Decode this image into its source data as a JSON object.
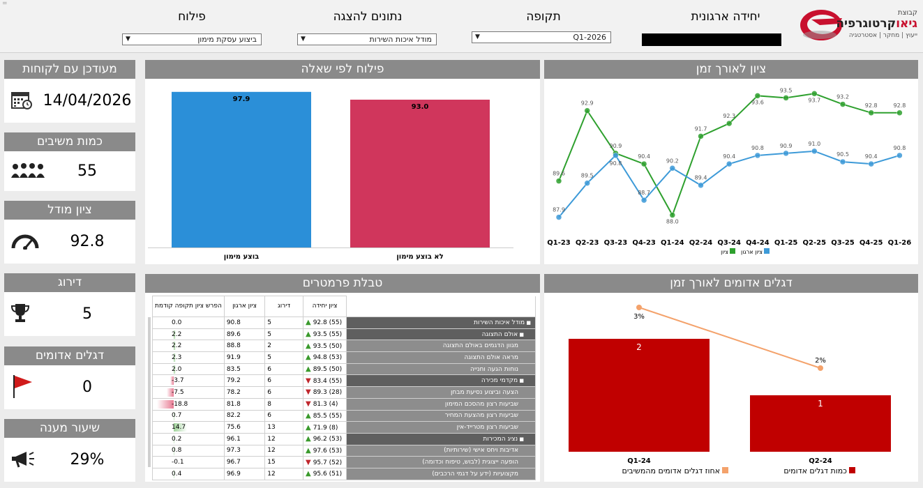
{
  "top_bar": {
    "corner_mark": "=",
    "filters": [
      {
        "title": "יחידה ארגונית",
        "value": ""
      },
      {
        "title": "תקופה",
        "value": "Q1-2026"
      },
      {
        "title": "נתונים להצגה",
        "value": "מודל איכות השירות"
      },
      {
        "title": "פילוח",
        "value": "ביצוע עסקת מימון"
      }
    ]
  },
  "logo": {
    "top_text": "קבוצת",
    "name_red": "גיאו",
    "name_rest": "קרטוגרפיה",
    "tagline": "ייעוץ | מחקר | אסטרטגיה"
  },
  "kpis": [
    {
      "title": "מעודכן עם לקוחות",
      "value": "14/04/2026",
      "icon": "calendar-icon"
    },
    {
      "title": "כמות משיבים",
      "value": "55",
      "icon": "people-icon"
    },
    {
      "title": "ציון מודל",
      "value": "92.8",
      "icon": "speedometer-icon"
    },
    {
      "title": "דירוג",
      "value": "5",
      "icon": "trophy-icon"
    },
    {
      "title": "דגלים אדומים",
      "value": "0",
      "icon": "red-flag-icon"
    },
    {
      "title": "שיעור מענה",
      "value": "29%",
      "icon": "megaphone-icon"
    }
  ],
  "panels": {
    "bar_by_question": "פילוח לפי שאלה",
    "score_over_time": "ציון לאורך זמן",
    "params_table": "טבלת פרמטרים",
    "red_flags_over_time": "דגלים אדומים לאורך זמן"
  },
  "chart_data": [
    {
      "type": "bar",
      "categories": [
        "בוצע מימון",
        "לא בוצע מימון"
      ],
      "values": [
        97.9,
        93.0
      ],
      "colors": [
        "#2b8fd8",
        "#d0365c"
      ],
      "title": "פילוח לפי שאלה",
      "ylim": [
        0,
        100
      ]
    },
    {
      "type": "line",
      "title": "ציון לאורך זמן",
      "categories": [
        "Q1-23",
        "Q2-23",
        "Q3-23",
        "Q4-23",
        "Q1-24",
        "Q2-24",
        "Q3-24",
        "Q4-24",
        "Q1-25",
        "Q2-25",
        "Q3-25",
        "Q4-25",
        "Q1-26"
      ],
      "series": [
        {
          "name": "ציון",
          "color": "#2ea02e",
          "values": [
            89.6,
            92.9,
            90.9,
            90.4,
            88.0,
            91.7,
            92.3,
            93.6,
            93.5,
            93.7,
            93.2,
            92.8,
            92.8
          ]
        },
        {
          "name": "ציון ארגון",
          "color": "#3d9ad8",
          "values": [
            87.9,
            89.5,
            90.8,
            88.7,
            90.2,
            89.4,
            90.4,
            90.8,
            90.9,
            91.0,
            90.5,
            90.4,
            90.8
          ]
        }
      ],
      "ylim": [
        87.2,
        94.2
      ],
      "legend": "bottom"
    },
    {
      "type": "bar",
      "title": "דגלים אדומים לאורך זמן",
      "categories": [
        "Q1-24",
        "Q2-24"
      ],
      "series": [
        {
          "name": "כמות דגלים אדומים",
          "color": "#c00000",
          "values": [
            2,
            1
          ]
        },
        {
          "name": "אחוז דגלים אדומים מהמשיבים",
          "color": "#f4a26b",
          "values": [
            "3%",
            "2%"
          ],
          "numeric": [
            3,
            2
          ]
        }
      ],
      "ylim": [
        0,
        3.2
      ],
      "legend": "bottom"
    }
  ],
  "params_table": {
    "headers": [
      "ציון יחידה",
      "דירוג",
      "ציון ארגון",
      "הפרש ציון תקופה קודמת"
    ],
    "rows": [
      {
        "name": "מודל איכות השירות",
        "group": true,
        "level": 0,
        "unit_score": "92.8 (55)",
        "trend": "up",
        "rank": "5",
        "org": "90.8",
        "diff": "0.0",
        "diff_val": 0.0
      },
      {
        "name": "אולם התצוגה",
        "group": true,
        "level": 1,
        "unit_score": "93.5 (55)",
        "trend": "up",
        "rank": "5",
        "org": "89.6",
        "diff": "2.2",
        "diff_val": 2.2
      },
      {
        "name": "מגוון הדגמים באולם התצוגה",
        "group": false,
        "level": 2,
        "unit_score": "93.5 (50)",
        "trend": "up",
        "rank": "2",
        "org": "88.8",
        "diff": "2.2",
        "diff_val": 2.2
      },
      {
        "name": "מראה אולם התצוגה",
        "group": false,
        "level": 2,
        "unit_score": "94.8 (53)",
        "trend": "up",
        "rank": "5",
        "org": "91.9",
        "diff": "2.3",
        "diff_val": 2.3
      },
      {
        "name": "נוחות הגעה וחנייה",
        "group": false,
        "level": 2,
        "unit_score": "89.5 (50)",
        "trend": "up",
        "rank": "6",
        "org": "83.5",
        "diff": "2.0",
        "diff_val": 2.0
      },
      {
        "name": "מקדמי מכירה",
        "group": true,
        "level": 1,
        "unit_score": "83.4 (55)",
        "trend": "down",
        "rank": "6",
        "org": "79.2",
        "diff": "-3.7",
        "diff_val": -3.7
      },
      {
        "name": "הצעה וביצוע נסיעת מבחן",
        "group": false,
        "level": 2,
        "unit_score": "89.3 (28)",
        "trend": "down",
        "rank": "6",
        "org": "78.2",
        "diff": "-7.5",
        "diff_val": -7.5
      },
      {
        "name": "שביעות רצון מהסכם המימון",
        "group": false,
        "level": 2,
        "unit_score": "81.3 (4)",
        "trend": "down",
        "rank": "8",
        "org": "81.8",
        "diff": "-18.8",
        "diff_val": -18.8
      },
      {
        "name": "שביעות רצון מהצעת המחיר",
        "group": false,
        "level": 2,
        "unit_score": "85.5 (55)",
        "trend": "up",
        "rank": "6",
        "org": "82.2",
        "diff": "0.7",
        "diff_val": 0.7
      },
      {
        "name": "שביעות רצון מטרייד-אין",
        "group": false,
        "level": 2,
        "unit_score": "71.9 (8)",
        "trend": "up",
        "rank": "13",
        "org": "75.6",
        "diff": "14.7",
        "diff_val": 14.7
      },
      {
        "name": "נציג המכירות",
        "group": true,
        "level": 1,
        "unit_score": "96.2 (53)",
        "trend": "up",
        "rank": "12",
        "org": "96.1",
        "diff": "0.2",
        "diff_val": 0.2
      },
      {
        "name": "אדיבות ויחס אישי (שירותיות)",
        "group": false,
        "level": 2,
        "unit_score": "97.6 (53)",
        "trend": "up",
        "rank": "12",
        "org": "97.3",
        "diff": "0.8",
        "diff_val": 0.8
      },
      {
        "name": "הופעה ייצוגית (לבוש, טיפוח וכדומה)",
        "group": false,
        "level": 2,
        "unit_score": "95.7 (52)",
        "trend": "down",
        "rank": "15",
        "org": "96.7",
        "diff": "-0.1",
        "diff_val": -0.1
      },
      {
        "name": "מקצועיות (ידע על דגמי הרכבים)",
        "group": false,
        "level": 2,
        "unit_score": "95.6 (51)",
        "trend": "up",
        "rank": "12",
        "org": "96.9",
        "diff": "0.4",
        "diff_val": 0.4
      }
    ]
  }
}
